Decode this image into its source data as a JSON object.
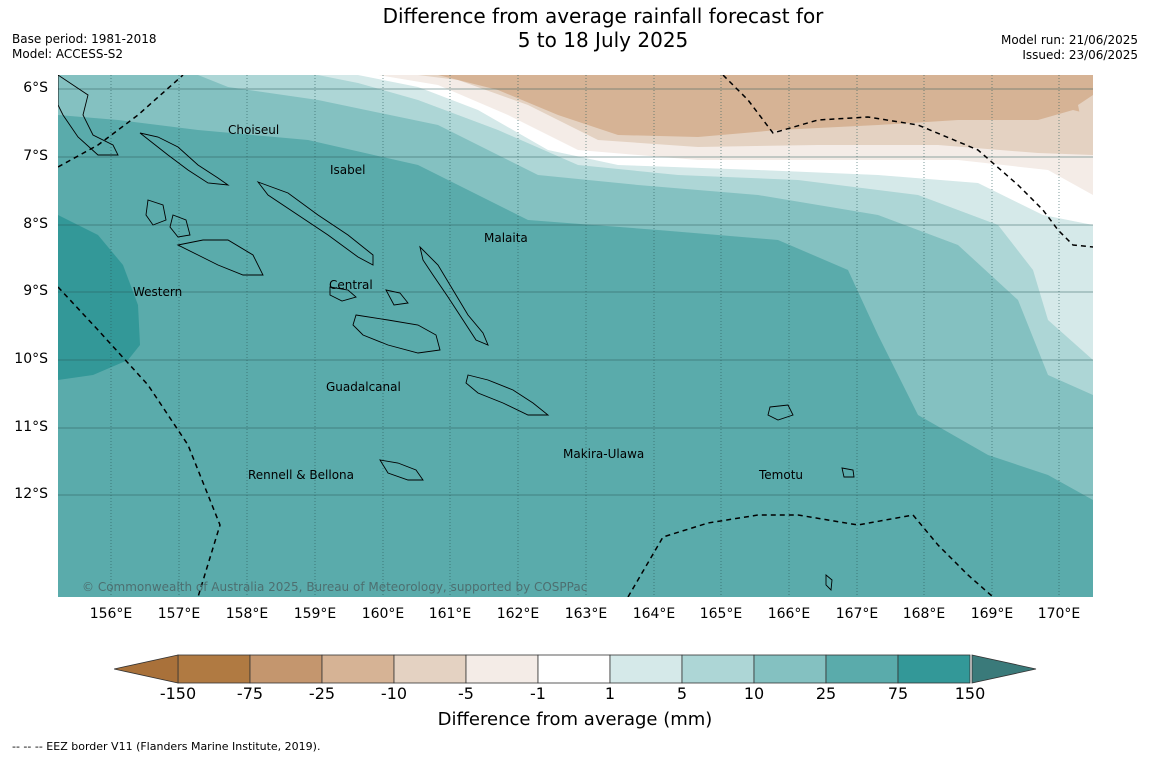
{
  "header": {
    "title_line1": "Difference from average rainfall forecast for",
    "title_line2": "5 to 18 July 2025",
    "base_period": "Base period: 1981-2018",
    "model": "Model: ACCESS-S2",
    "model_run": "Model run: 21/06/2025",
    "issued": "Issued: 23/06/2025"
  },
  "map": {
    "lat_ticks": [
      "6°S",
      "7°S",
      "8°S",
      "9°S",
      "10°S",
      "11°S",
      "12°S"
    ],
    "lon_ticks": [
      "156°E",
      "157°E",
      "158°E",
      "159°E",
      "160°E",
      "161°E",
      "162°E",
      "163°E",
      "164°E",
      "165°E",
      "166°E",
      "167°E",
      "168°E",
      "169°E",
      "170°E"
    ],
    "places": [
      {
        "name": "Choiseul"
      },
      {
        "name": "Isabel"
      },
      {
        "name": "Malaita"
      },
      {
        "name": "Western"
      },
      {
        "name": "Central"
      },
      {
        "name": "Guadalcanal"
      },
      {
        "name": "Makira-Ulawa"
      },
      {
        "name": "Rennell & Bellona"
      },
      {
        "name": "Temotu"
      }
    ],
    "copyright": "© Commonwealth of Australia 2025, Bureau of Meteorology, supported by COSPPac"
  },
  "colorbar": {
    "labels": [
      "-150",
      "-75",
      "-25",
      "-10",
      "-5",
      "-1",
      "1",
      "5",
      "10",
      "25",
      "75",
      "150"
    ],
    "colors": [
      "#a9713a",
      "#b07a42",
      "#c4966e",
      "#d6b395",
      "#e4d2c2",
      "#f4ece7",
      "#ffffff",
      "#d5e9e9",
      "#add6d6",
      "#84c1c1",
      "#5aabab",
      "#339898",
      "#3a7a7a"
    ],
    "title": "Difference from average (mm)"
  },
  "footnote": "--  --  -- EEZ border V11 (Flanders Marine Institute, 2019)."
}
